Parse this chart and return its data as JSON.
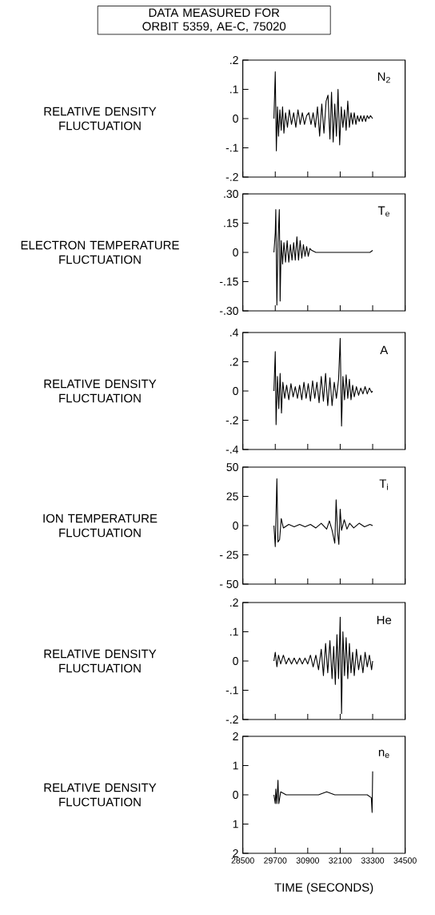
{
  "chart_data": [
    {
      "type": "line",
      "title": "DATA MEASURED FOR ORBIT 5359, AE-C, 75020",
      "ylabel": "RELATIVE DENSITY FLUCTUATION",
      "annotations": [
        "N$_{2}$"
      ],
      "color": "#000000",
      "tick_labels": "y",
      "xlim": [
        28500,
        34500
      ],
      "xticks": [
        28500,
        29700,
        30900,
        32100,
        33300,
        34500
      ],
      "ylim": [
        -0.2,
        0.2
      ],
      "yticks": [
        {
          "value": 0.2,
          "label": ".2"
        },
        {
          "value": 0.1,
          "label": ".1"
        },
        0,
        {
          "value": -0.1,
          "label": "-.1"
        },
        {
          "value": -0.2,
          "label": "-.2"
        }
      ],
      "x": [
        29650,
        29700,
        29740,
        29780,
        29820,
        29870,
        29920,
        29970,
        30020,
        30080,
        30150,
        30220,
        30300,
        30380,
        30460,
        30540,
        30620,
        30700,
        30780,
        30860,
        30940,
        31020,
        31100,
        31180,
        31260,
        31340,
        31420,
        31500,
        31580,
        31650,
        31720,
        31780,
        31840,
        31900,
        31960,
        32020,
        32080,
        32140,
        32200,
        32260,
        32320,
        32380,
        32440,
        32500,
        32560,
        32620,
        32680,
        32740,
        32800,
        32860,
        32920,
        32980,
        33040,
        33100,
        33160,
        33220,
        33300
      ],
      "values": [
        0,
        0.16,
        -0.11,
        0.04,
        -0.06,
        0.03,
        -0.04,
        0.04,
        -0.05,
        0.02,
        -0.03,
        0.03,
        -0.02,
        0.02,
        -0.03,
        0.03,
        -0.02,
        0.02,
        -0.02,
        0.01,
        0.02,
        -0.02,
        0.02,
        -0.03,
        0.04,
        -0.06,
        0.05,
        -0.05,
        0.06,
        0.08,
        -0.07,
        0.09,
        -0.08,
        0.05,
        -0.06,
        0.1,
        -0.09,
        0.04,
        -0.03,
        0.03,
        -0.04,
        0.06,
        -0.03,
        0.02,
        -0.02,
        0.02,
        -0.02,
        0.01,
        -0.01,
        0.01,
        -0.01,
        0.01,
        -0.01,
        0.01,
        0,
        0.01,
        0
      ]
    },
    {
      "type": "line",
      "ylabel": "ELECTRON TEMPERATURE FLUCTUATION",
      "annotations": [
        "T$_{e}$"
      ],
      "color": "#000000",
      "tick_labels": "y",
      "xlim": [
        28500,
        34500
      ],
      "xticks": [
        28500,
        29700,
        30900,
        32100,
        33300,
        34500
      ],
      "ylim": [
        -0.3,
        0.3
      ],
      "yticks": [
        {
          "value": 0.3,
          "label": ".30"
        },
        {
          "value": 0.15,
          "label": ".15"
        },
        0,
        {
          "value": -0.15,
          "label": "-.15"
        },
        {
          "value": -0.3,
          "label": "-.30"
        }
      ],
      "x": [
        29650,
        29700,
        29720,
        29760,
        29800,
        29850,
        29880,
        29920,
        29970,
        30020,
        30080,
        30140,
        30200,
        30260,
        30320,
        30380,
        30440,
        30500,
        30560,
        30620,
        30680,
        30740,
        30800,
        30860,
        30920,
        30980,
        31050,
        31200,
        31400,
        31600,
        31800,
        32000,
        32200,
        32400,
        32600,
        32800,
        33000,
        33200,
        33300
      ],
      "values": [
        0,
        0.1,
        0.22,
        -0.27,
        0.05,
        0.22,
        -0.25,
        0.06,
        -0.06,
        0.05,
        -0.05,
        0.06,
        -0.05,
        0.04,
        -0.04,
        0.05,
        -0.04,
        0.08,
        -0.04,
        0.06,
        -0.03,
        0.04,
        -0.02,
        0.03,
        -0.02,
        0.02,
        0.01,
        0,
        0,
        0,
        0,
        0,
        0,
        0,
        0,
        0,
        0,
        0,
        0.01
      ]
    },
    {
      "type": "line",
      "ylabel": "RELATIVE DENSITY FLUCTUATION",
      "annotations": [
        "A"
      ],
      "color": "#000000",
      "tick_labels": "y",
      "xlim": [
        28500,
        34500
      ],
      "xticks": [
        28500,
        29700,
        30900,
        32100,
        33300,
        34500
      ],
      "ylim": [
        -0.4,
        0.4
      ],
      "yticks": [
        {
          "value": 0.4,
          "label": ".4"
        },
        {
          "value": 0.2,
          "label": ".2"
        },
        0,
        {
          "value": -0.2,
          "label": "-.2"
        },
        {
          "value": -0.4,
          "label": "-.4"
        }
      ],
      "x": [
        29650,
        29700,
        29730,
        29780,
        29830,
        29880,
        29930,
        29980,
        30050,
        30120,
        30200,
        30280,
        30360,
        30440,
        30520,
        30600,
        30680,
        30760,
        30840,
        30920,
        31000,
        31080,
        31160,
        31240,
        31320,
        31400,
        31480,
        31560,
        31640,
        31720,
        31800,
        31880,
        31960,
        32040,
        32100,
        32150,
        32200,
        32260,
        32320,
        32380,
        32440,
        32500,
        32560,
        32620,
        32700,
        32780,
        32860,
        32940,
        33020,
        33100,
        33180,
        33260,
        33300
      ],
      "values": [
        0,
        0.27,
        -0.23,
        0.1,
        -0.12,
        0.12,
        -0.15,
        0.06,
        -0.05,
        0.04,
        -0.06,
        0.05,
        -0.04,
        0.03,
        -0.05,
        0.04,
        -0.06,
        0.06,
        -0.05,
        0.05,
        -0.07,
        0.07,
        -0.05,
        0.06,
        -0.08,
        0.1,
        -0.07,
        0.12,
        -0.1,
        0.09,
        -0.1,
        0.06,
        -0.05,
        0.08,
        0.36,
        -0.24,
        0.1,
        -0.06,
        0.11,
        -0.05,
        0.08,
        -0.06,
        0.04,
        -0.04,
        0.03,
        -0.03,
        0.02,
        -0.02,
        0.03,
        -0.02,
        0.02,
        -0.01,
        0
      ]
    },
    {
      "type": "line",
      "ylabel": "ION TEMPERATURE FLUCTUATION",
      "annotations": [
        "T$_{i}$"
      ],
      "color": "#000000",
      "tick_labels": "y",
      "xlim": [
        28500,
        34500
      ],
      "xticks": [
        28500,
        29700,
        30900,
        32100,
        33300,
        34500
      ],
      "ylim": [
        -50,
        50
      ],
      "yticks": [
        {
          "value": 50,
          "label": "50"
        },
        25,
        0,
        {
          "value": -25,
          "label": "- 25"
        },
        {
          "value": -50,
          "label": "- 50"
        }
      ],
      "x": [
        29650,
        29700,
        29760,
        29800,
        29860,
        29920,
        30000,
        30200,
        30400,
        30600,
        30800,
        31000,
        31200,
        31400,
        31600,
        31700,
        31800,
        31900,
        31950,
        32000,
        32050,
        32100,
        32150,
        32250,
        32350,
        32450,
        32600,
        32800,
        33000,
        33200,
        33300
      ],
      "values": [
        0,
        -18,
        40,
        -14,
        -12,
        6,
        -2,
        1,
        -1,
        1,
        -1,
        1,
        -2,
        2,
        -3,
        4,
        -4,
        -15,
        22,
        -5,
        -16,
        14,
        -4,
        5,
        -3,
        2,
        -2,
        2,
        -1,
        1,
        0
      ]
    },
    {
      "type": "line",
      "ylabel": "RELATIVE DENSITY FLUCTUATION",
      "annotations": [
        "He"
      ],
      "color": "#000000",
      "tick_labels": "y",
      "xlim": [
        28500,
        34500
      ],
      "xticks": [
        28500,
        29700,
        30900,
        32100,
        33300,
        34500
      ],
      "ylim": [
        -0.2,
        0.2
      ],
      "yticks": [
        {
          "value": 0.2,
          "label": ".2"
        },
        {
          "value": 0.1,
          "label": ".1"
        },
        0,
        {
          "value": -0.1,
          "label": "-.1"
        },
        {
          "value": -0.2,
          "label": "-.2"
        }
      ],
      "x": [
        29650,
        29700,
        29760,
        29820,
        29900,
        30000,
        30100,
        30200,
        30300,
        30400,
        30500,
        30600,
        30700,
        30800,
        30900,
        31000,
        31100,
        31200,
        31300,
        31400,
        31480,
        31560,
        31640,
        31720,
        31800,
        31860,
        31920,
        31980,
        32040,
        32100,
        32150,
        32200,
        32260,
        32320,
        32380,
        32440,
        32500,
        32560,
        32620,
        32700,
        32780,
        32860,
        32940,
        33020,
        33100,
        33180,
        33260,
        33300
      ],
      "values": [
        0,
        0.03,
        -0.02,
        0.02,
        -0.01,
        0.02,
        -0.01,
        0.01,
        -0.01,
        0.01,
        -0.01,
        0.01,
        -0.01,
        0.01,
        -0.01,
        0.02,
        -0.02,
        0.02,
        -0.03,
        0.04,
        -0.05,
        0.06,
        -0.04,
        0.07,
        -0.06,
        0.05,
        -0.08,
        0.09,
        -0.06,
        0.15,
        -0.18,
        0.1,
        -0.05,
        0.08,
        -0.06,
        0.06,
        -0.04,
        0.03,
        -0.05,
        0.04,
        -0.03,
        0.02,
        -0.04,
        0.03,
        -0.02,
        0.02,
        -0.03,
        0
      ]
    },
    {
      "type": "line",
      "ylabel": "RELATIVE DENSITY FLUCTUATION",
      "xlabel": "TIME (SECONDS)",
      "annotations": [
        "n$_{e}$"
      ],
      "color": "#000000",
      "xlim": [
        28500,
        34500
      ],
      "xticks": [
        28500,
        29700,
        30900,
        32100,
        33300,
        34500
      ],
      "ylim": [
        -2,
        2
      ],
      "yticks": [
        2,
        1,
        0,
        {
          "value": -1,
          "label": "1"
        },
        {
          "value": -2,
          "label": "2"
        }
      ],
      "x": [
        29650,
        29700,
        29720,
        29760,
        29800,
        29830,
        29900,
        30100,
        30400,
        30700,
        31000,
        31300,
        31600,
        31900,
        32200,
        32500,
        32800,
        33100,
        33250,
        33280,
        33300
      ],
      "values": [
        0,
        -0.3,
        0.2,
        -0.3,
        0.5,
        -0.3,
        0.1,
        0,
        0,
        0,
        0,
        0,
        0.1,
        0,
        0,
        0,
        0,
        0,
        -0.1,
        -0.6,
        0.8
      ]
    }
  ]
}
